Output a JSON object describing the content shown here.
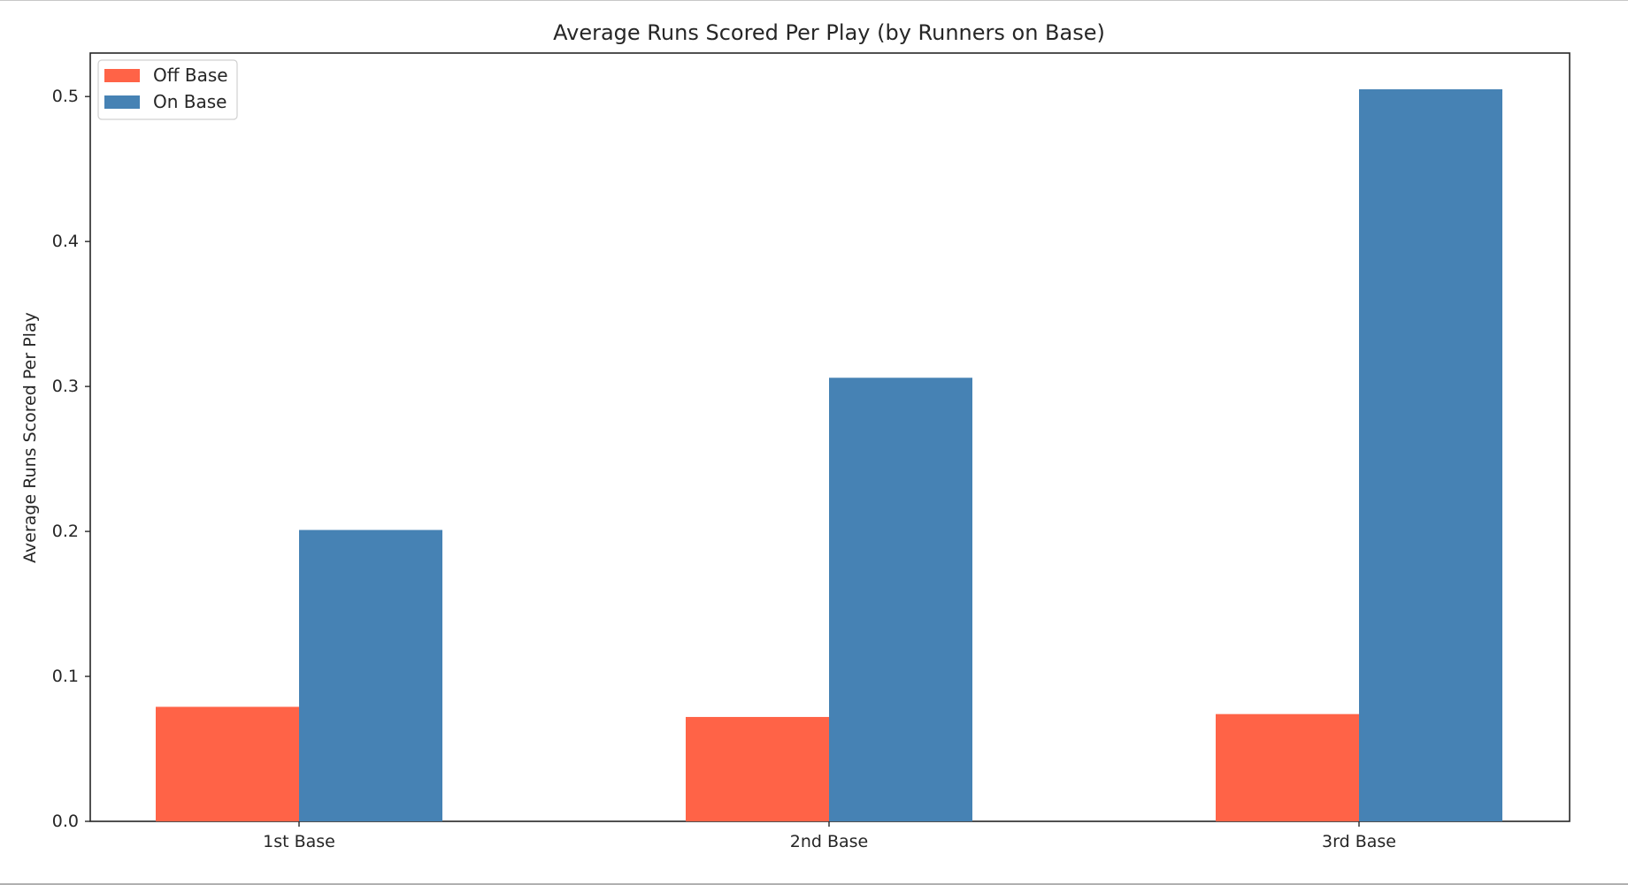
{
  "chart_data": {
    "type": "bar",
    "title": "Average Runs Scored Per Play (by Runners on Base)",
    "xlabel": "",
    "ylabel": "Average Runs Scored Per Play",
    "categories": [
      "1st Base",
      "2nd Base",
      "3rd Base"
    ],
    "series": [
      {
        "name": "Off Base",
        "color": "#ff6347",
        "values": [
          0.079,
          0.072,
          0.074
        ]
      },
      {
        "name": "On Base",
        "color": "#4682b4",
        "values": [
          0.201,
          0.306,
          0.505
        ]
      }
    ],
    "ylim": [
      0,
      0.53
    ],
    "yticks": [
      "0.0",
      "0.1",
      "0.2",
      "0.3",
      "0.4",
      "0.5"
    ],
    "grid": false,
    "legend_position": "top-left"
  }
}
